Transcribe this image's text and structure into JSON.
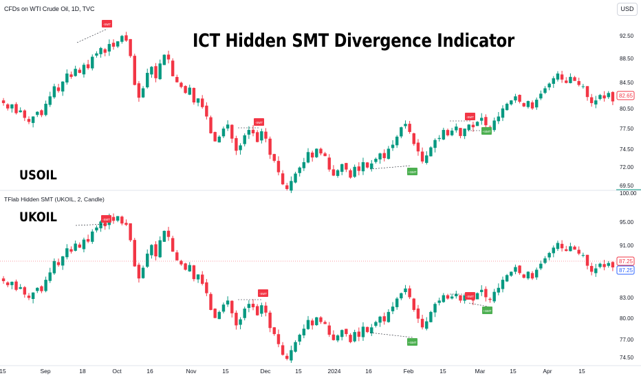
{
  "header": {
    "symbol": "CFDs on WTI Crude Oil, 1D, TVC",
    "currency": "USD",
    "title": "ICT Hidden SMT Divergence Indicator"
  },
  "panes": {
    "top_label": "USOIL",
    "bottom_label": "UKOIL",
    "indicator_label": "TFlab Hidden SMT (UKOIL, 2, Candle)"
  },
  "colors": {
    "up": "#089981",
    "down": "#f23645",
    "bear_tag": "#f23645",
    "bull_tag": "#4caf50",
    "price_up": "#f23645",
    "price_alt": "#2962ff"
  },
  "markers": {
    "bear": "-SMT",
    "bull": "+SMT"
  },
  "top_axis": {
    "ticks": [
      "92.50",
      "88.50",
      "84.50",
      "80.50",
      "77.50",
      "74.50",
      "72.00",
      "69.50"
    ],
    "price_tag": "82.65",
    "top_value": "100.00"
  },
  "bottom_axis": {
    "ticks": [
      "95.00",
      "91.00",
      "87.25",
      "83.00",
      "80.00",
      "77.00",
      "74.50"
    ],
    "price_tag_1": "87.25",
    "price_tag_2": "87.25"
  },
  "time_axis": [
    "15",
    "Sep",
    "18",
    "Oct",
    "16",
    "Nov",
    "15",
    "Dec",
    "15",
    "2024",
    "16",
    "Feb",
    "15",
    "Mar",
    "15",
    "Apr",
    "15"
  ],
  "chart_data": {
    "type": "candlestick",
    "series": [
      {
        "name": "USOIL",
        "closes": [
          82.4,
          81.6,
          82.2,
          80.9,
          81.3,
          80.2,
          79.6,
          80.4,
          81.1,
          80.6,
          82.3,
          83.4,
          84.9,
          84.2,
          85.6,
          86.8,
          86.3,
          87.5,
          86.9,
          88.1,
          87.6,
          89.3,
          89.8,
          90.6,
          89.9,
          91.2,
          90.8,
          91.6,
          92.4,
          91.7,
          89.4,
          85.1,
          83.2,
          84.6,
          86.9,
          87.8,
          86.1,
          88.3,
          89.6,
          88.9,
          86.4,
          85.5,
          84.8,
          83.9,
          84.7,
          82.5,
          83.1,
          81.8,
          80.4,
          77.9,
          76.7,
          77.4,
          78.6,
          79.2,
          77.1,
          75.3,
          76.1,
          77.6,
          78.4,
          77.9,
          76.6,
          78.2,
          77.1,
          74.7,
          73.8,
          72.1,
          70.3,
          69.6,
          70.8,
          71.9,
          72.8,
          73.6,
          75.1,
          74.3,
          75.6,
          74.9,
          74.5,
          72.5,
          71.6,
          72.4,
          73.3,
          72.5,
          71.3,
          72.9,
          72.3,
          73.6,
          72.8,
          73.4,
          74.1,
          74.9,
          74.2,
          75.6,
          76.2,
          77.4,
          78.8,
          79.3,
          78.1,
          76.3,
          75.2,
          73.7,
          74.6,
          75.8,
          76.9,
          77.2,
          78.4,
          77.6,
          78.3,
          78.9,
          77.5,
          78.6,
          79.2,
          78.8,
          79.6,
          80.2,
          79.1,
          78.6,
          79.8,
          80.4,
          81.6,
          82.3,
          82.8,
          83.4,
          82.6,
          81.9,
          82.7,
          81.6,
          82.9,
          83.8,
          84.6,
          85.3,
          86.1,
          86.8,
          85.9,
          85.4,
          86.3,
          85.7,
          85.1,
          84.9,
          83.3,
          82.4,
          82.8,
          83.6,
          83.1,
          83.9,
          82.65
        ],
        "ylim": [
          69.5,
          95.5
        ]
      },
      {
        "name": "UKOIL",
        "closes": [
          85.2,
          84.6,
          85.1,
          83.9,
          84.3,
          83.2,
          82.7,
          83.5,
          84.2,
          83.7,
          85.4,
          86.5,
          88.2,
          87.6,
          88.9,
          90.1,
          89.6,
          90.8,
          90.2,
          91.4,
          91.1,
          92.6,
          93.2,
          94.1,
          93.4,
          94.6,
          94.2,
          94.9,
          93.8,
          93.6,
          91.3,
          87.4,
          85.6,
          87.2,
          89.3,
          90.6,
          88.9,
          91.3,
          92.7,
          91.8,
          89.6,
          88.3,
          87.7,
          86.9,
          87.6,
          85.5,
          86.2,
          84.8,
          83.4,
          80.9,
          79.7,
          80.6,
          81.7,
          82.3,
          80.4,
          78.6,
          79.5,
          81.1,
          81.8,
          81.3,
          80.1,
          81.6,
          80.5,
          78.2,
          77.3,
          75.8,
          74.2,
          73.6,
          74.9,
          76.1,
          77.2,
          78.1,
          79.4,
          78.6,
          79.8,
          79.1,
          78.8,
          77.2,
          76.4,
          77.1,
          77.9,
          77.3,
          76.1,
          77.6,
          76.9,
          78.4,
          77.6,
          78.3,
          79.1,
          79.9,
          79.2,
          80.6,
          81.4,
          82.6,
          83.4,
          84.1,
          82.8,
          80.9,
          79.6,
          78.3,
          79.2,
          80.6,
          81.8,
          82.3,
          83.1,
          82.6,
          82.9,
          83.3,
          82.3,
          83.1,
          82.8,
          82.3,
          83.4,
          83.9,
          82.8,
          82.4,
          83.6,
          84.2,
          85.4,
          86.1,
          86.6,
          87.3,
          86.4,
          85.7,
          86.6,
          85.6,
          86.9,
          87.8,
          88.6,
          89.4,
          90.2,
          90.9,
          90.1,
          89.7,
          90.4,
          89.9,
          89.3,
          89.1,
          87.5,
          86.6,
          87.1,
          87.8,
          87.3,
          87.9,
          87.25
        ],
        "ylim": [
          73.0,
          97.0
        ]
      }
    ],
    "annotations": [
      {
        "type": "bearish",
        "label": "-SMT"
      },
      {
        "type": "bullish",
        "label": "+SMT"
      }
    ]
  }
}
